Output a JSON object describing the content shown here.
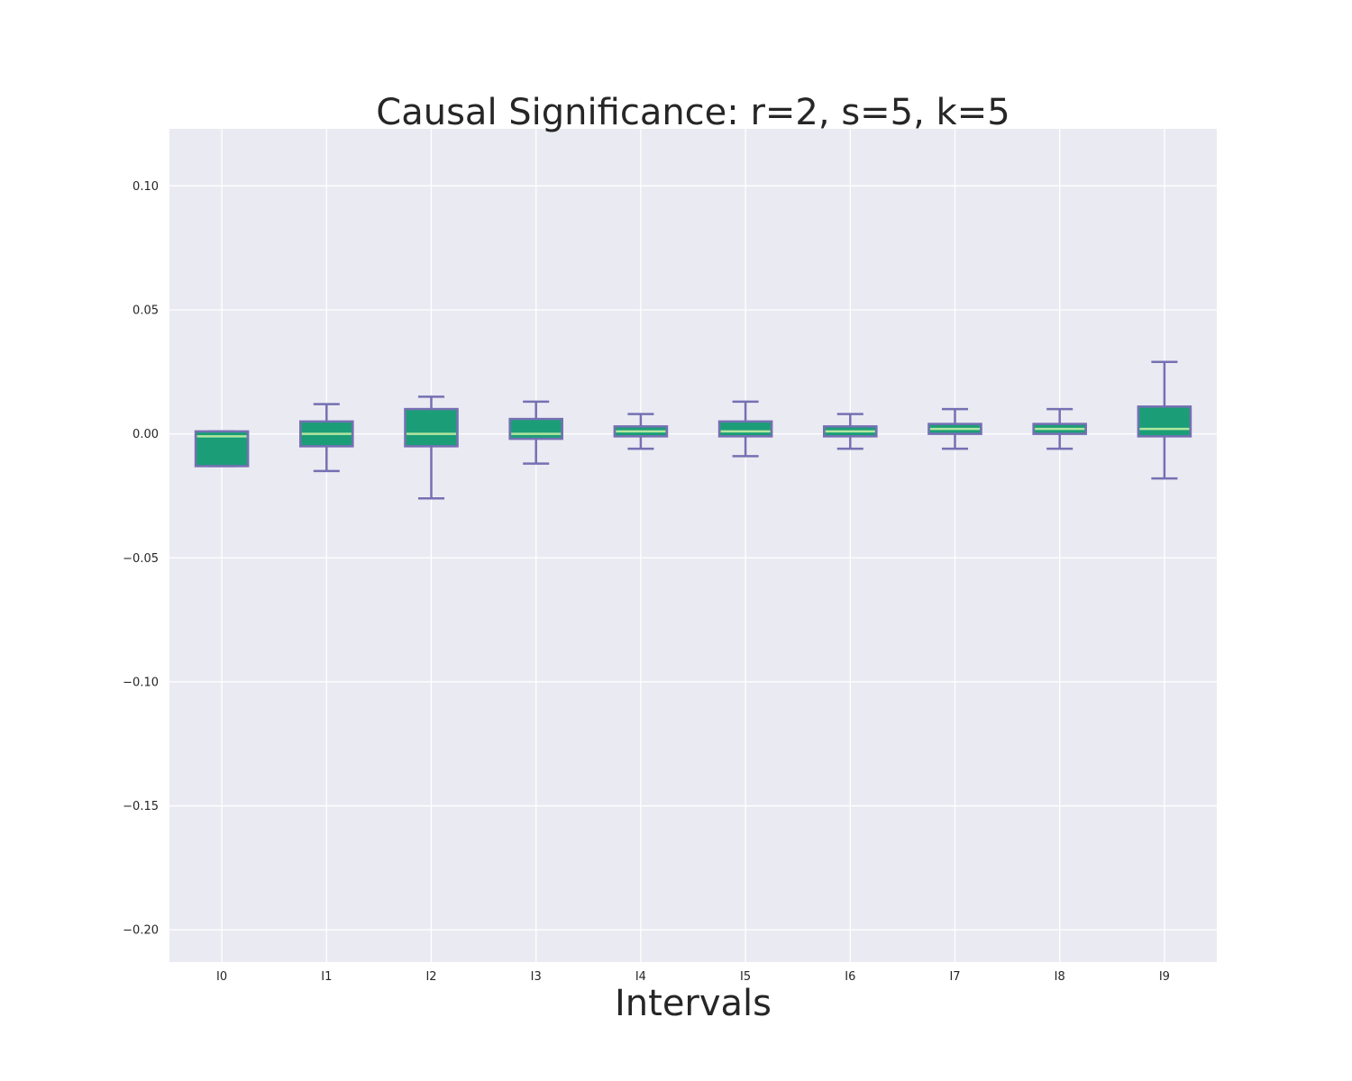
{
  "chart_data": {
    "type": "box",
    "title": "Causal Significance: r=2, s=5, k=5",
    "xlabel": "Intervals",
    "ylabel": "",
    "ylim": [
      -0.213,
      0.123
    ],
    "yticks": [
      0.1,
      0.05,
      0.0,
      -0.05,
      -0.1,
      -0.15,
      -0.2
    ],
    "ytick_labels": [
      "0.10",
      "0.05",
      "0.00",
      "−0.05",
      "−0.10",
      "−0.15",
      "−0.20"
    ],
    "grid": true,
    "colors": {
      "background": "#eaeaf2",
      "box_fill": "#1b9e77",
      "box_edge": "#7570b3",
      "median": "#b3e69e",
      "grid": "#ffffff"
    },
    "categories": [
      "I0",
      "I1",
      "I2",
      "I3",
      "I4",
      "I5",
      "I6",
      "I7",
      "I8",
      "I9"
    ],
    "boxes": [
      {
        "label": "I0",
        "whislo": -0.013,
        "q1": -0.013,
        "med": -0.001,
        "q3": 0.001,
        "whishi": 0.001
      },
      {
        "label": "I1",
        "whislo": -0.015,
        "q1": -0.005,
        "med": 0.0,
        "q3": 0.005,
        "whishi": 0.012
      },
      {
        "label": "I2",
        "whislo": -0.026,
        "q1": -0.005,
        "med": 0.0,
        "q3": 0.01,
        "whishi": 0.015
      },
      {
        "label": "I3",
        "whislo": -0.012,
        "q1": -0.002,
        "med": 0.0,
        "q3": 0.006,
        "whishi": 0.013
      },
      {
        "label": "I4",
        "whislo": -0.006,
        "q1": -0.001,
        "med": 0.001,
        "q3": 0.003,
        "whishi": 0.008
      },
      {
        "label": "I5",
        "whislo": -0.009,
        "q1": -0.001,
        "med": 0.001,
        "q3": 0.005,
        "whishi": 0.013
      },
      {
        "label": "I6",
        "whislo": -0.006,
        "q1": -0.001,
        "med": 0.001,
        "q3": 0.003,
        "whishi": 0.008
      },
      {
        "label": "I7",
        "whislo": -0.006,
        "q1": 0.0,
        "med": 0.002,
        "q3": 0.004,
        "whishi": 0.01
      },
      {
        "label": "I8",
        "whislo": -0.006,
        "q1": 0.0,
        "med": 0.002,
        "q3": 0.004,
        "whishi": 0.01
      },
      {
        "label": "I9",
        "whislo": -0.018,
        "q1": -0.001,
        "med": 0.002,
        "q3": 0.011,
        "whishi": 0.029
      }
    ]
  }
}
